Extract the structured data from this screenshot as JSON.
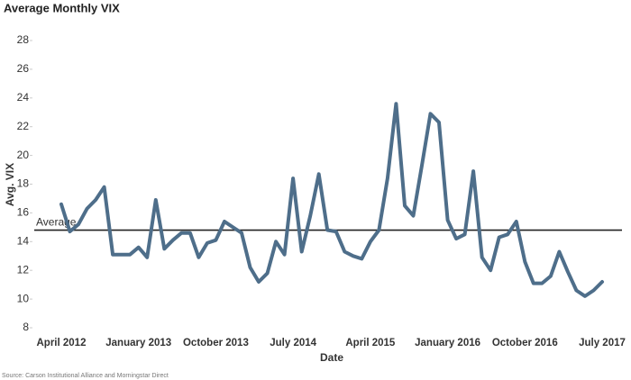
{
  "chart_data": {
    "type": "line",
    "title": "Average Monthly VIX",
    "x_label": "Date",
    "y_label": "Avg. VIX",
    "source": "Source: Carson Institutional Alliance and Morningstar Direct",
    "categories": [
      "April 2012",
      null,
      null,
      null,
      null,
      null,
      null,
      null,
      null,
      "January 2013",
      null,
      null,
      null,
      null,
      null,
      null,
      null,
      null,
      "October 2013",
      null,
      null,
      null,
      null,
      null,
      null,
      null,
      null,
      "July 2014",
      null,
      null,
      null,
      null,
      null,
      null,
      null,
      null,
      "April 2015",
      null,
      null,
      null,
      null,
      null,
      null,
      null,
      null,
      "January 2016",
      null,
      null,
      null,
      null,
      null,
      null,
      null,
      null,
      "October 2016",
      null,
      null,
      null,
      null,
      null,
      null,
      null,
      null,
      "July 2017"
    ],
    "series": [
      {
        "name": "Avg. VIX",
        "color": "#4e6e8a",
        "values": [
          16.6,
          14.7,
          15.2,
          16.3,
          16.9,
          17.8,
          13.1,
          13.1,
          13.1,
          13.6,
          12.9,
          16.9,
          13.5,
          14.1,
          14.6,
          14.6,
          12.9,
          13.9,
          14.1,
          15.4,
          15.0,
          14.6,
          12.2,
          11.2,
          11.8,
          14.0,
          13.1,
          18.4,
          13.3,
          15.8,
          18.7,
          14.8,
          14.7,
          13.3,
          13.0,
          12.8,
          14.0,
          14.8,
          18.4,
          23.6,
          16.5,
          15.8,
          19.3,
          22.9,
          22.3,
          15.5,
          14.2,
          14.5,
          18.9,
          12.9,
          12.0,
          14.3,
          14.5,
          15.4,
          12.6,
          11.1,
          11.1,
          11.6,
          13.3,
          11.9,
          10.6,
          10.2,
          10.6,
          11.2
        ]
      }
    ],
    "reference_line": {
      "value": 14.8,
      "label": "Average",
      "color": "#222222"
    },
    "ylim": [
      8,
      28
    ],
    "yticks": [
      8,
      10,
      12,
      14,
      16,
      18,
      20,
      22,
      24,
      26,
      28
    ],
    "grid": false
  }
}
